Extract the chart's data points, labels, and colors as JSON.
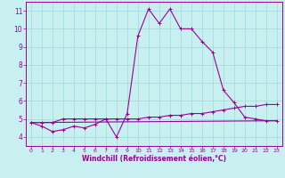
{
  "title": "",
  "xlabel": "Windchill (Refroidissement éolien,°C)",
  "xlim": [
    -0.5,
    23.5
  ],
  "ylim": [
    3.5,
    11.5
  ],
  "yticks": [
    4,
    5,
    6,
    7,
    8,
    9,
    10,
    11
  ],
  "xticks": [
    0,
    1,
    2,
    3,
    4,
    5,
    6,
    7,
    8,
    9,
    10,
    11,
    12,
    13,
    14,
    15,
    16,
    17,
    18,
    19,
    20,
    21,
    22,
    23
  ],
  "background_color": "#c8f0f0",
  "grid_color": "#a0d8d8",
  "line_color": "#990099",
  "line1_x": [
    0,
    1,
    2,
    3,
    4,
    5,
    6,
    7,
    8,
    9,
    10,
    11,
    12,
    13,
    14,
    15,
    16,
    17,
    18,
    19,
    20,
    21,
    22,
    23
  ],
  "line1_y": [
    4.8,
    4.6,
    4.3,
    4.4,
    4.6,
    4.5,
    4.7,
    5.0,
    4.0,
    5.3,
    9.6,
    11.1,
    10.3,
    11.1,
    10.0,
    10.0,
    9.3,
    8.7,
    6.6,
    5.9,
    5.1,
    5.0,
    4.9,
    4.9
  ],
  "line2_x": [
    0,
    1,
    2,
    3,
    4,
    5,
    6,
    7,
    8,
    9,
    10,
    11,
    12,
    13,
    14,
    15,
    16,
    17,
    18,
    19,
    20,
    21,
    22,
    23
  ],
  "line2_y": [
    4.8,
    4.8,
    4.8,
    5.0,
    5.0,
    5.0,
    5.0,
    5.0,
    5.0,
    5.0,
    5.0,
    5.1,
    5.1,
    5.2,
    5.2,
    5.3,
    5.3,
    5.4,
    5.5,
    5.6,
    5.7,
    5.7,
    5.8,
    5.8
  ],
  "line3_x": [
    0,
    23
  ],
  "line3_y": [
    4.8,
    4.9
  ]
}
